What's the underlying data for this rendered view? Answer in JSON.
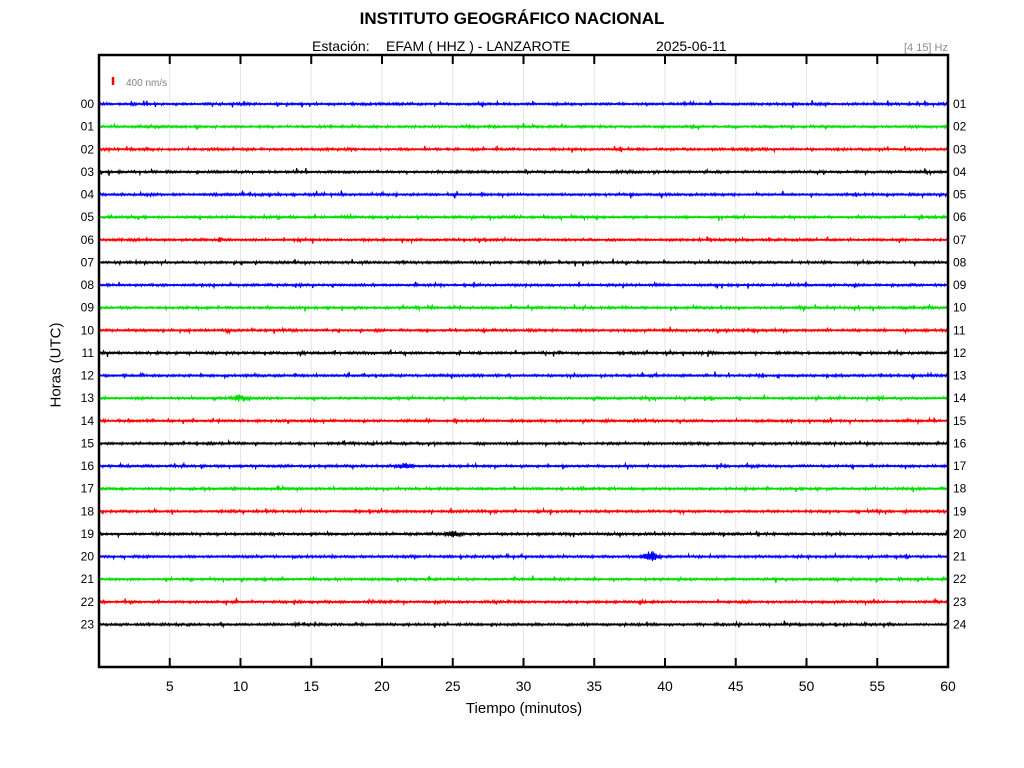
{
  "header": {
    "title": "INSTITUTO GEOGRÁFICO NACIONAL",
    "station_label": "Estación:",
    "station_name": "EFAM ( HHZ ) - LANZAROTE",
    "date": "2025-06-11",
    "filter": "[4 15] Hz"
  },
  "chart_data": {
    "type": "line",
    "xlabel": "Tiempo (minutos)",
    "ylabel": "Horas (UTC)",
    "xlim": [
      0,
      60
    ],
    "x_ticks": [
      5,
      10,
      15,
      20,
      25,
      30,
      35,
      40,
      45,
      50,
      55,
      60
    ],
    "grid": true,
    "scale_bar_label": "400 nm/s",
    "scale_bar_color": "#ff0000",
    "left_hour_labels": [
      "00",
      "01",
      "02",
      "03",
      "04",
      "05",
      "06",
      "07",
      "08",
      "09",
      "10",
      "11",
      "12",
      "13",
      "14",
      "15",
      "16",
      "17",
      "18",
      "19",
      "20",
      "21",
      "22",
      "23"
    ],
    "right_hour_labels": [
      "01",
      "02",
      "03",
      "04",
      "05",
      "06",
      "07",
      "08",
      "09",
      "10",
      "11",
      "12",
      "13",
      "14",
      "15",
      "16",
      "17",
      "18",
      "19",
      "20",
      "21",
      "22",
      "23",
      "24"
    ],
    "trace_colors": [
      "#0000ff",
      "#00dd00",
      "#ff0000",
      "#000000"
    ],
    "events": [
      {
        "hour": "13",
        "minute": 10,
        "amplitude": "medium"
      },
      {
        "hour": "16",
        "minute": 21.5,
        "amplitude": "medium"
      },
      {
        "hour": "19",
        "minute": 25,
        "amplitude": "medium"
      },
      {
        "hour": "20",
        "minute": 39,
        "amplitude": "high"
      },
      {
        "hour": "06",
        "minute": 14.2,
        "amplitude": "small"
      }
    ]
  }
}
